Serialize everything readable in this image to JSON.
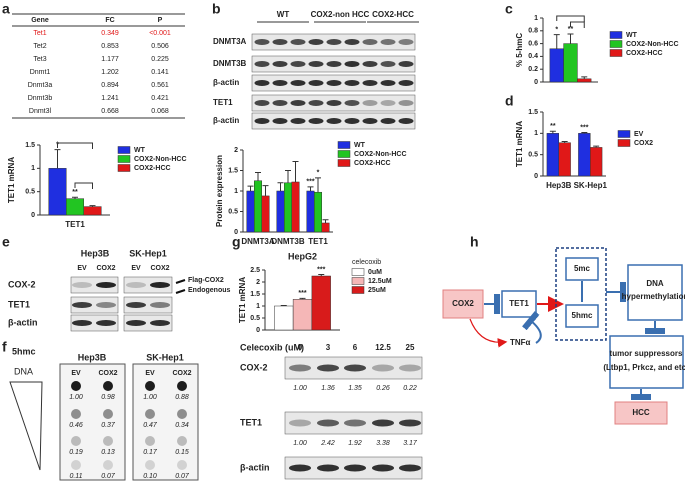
{
  "panel_labels": [
    "a",
    "b",
    "c",
    "d",
    "e",
    "f",
    "g",
    "h"
  ],
  "table_a": {
    "header": [
      "Gene",
      "FC",
      "P"
    ],
    "rows": [
      [
        "Tet1",
        "0.349",
        "<0.001"
      ],
      [
        "Tet2",
        "0.853",
        "0.506"
      ],
      [
        "Tet3",
        "1.177",
        "0.225"
      ],
      [
        "Dnmt1",
        "1.202",
        "0.141"
      ],
      [
        "Dnmt3a",
        "0.894",
        "0.561"
      ],
      [
        "Dnmt3b",
        "1.241",
        "0.421"
      ],
      [
        "Dnmt3l",
        "0.668",
        "0.068"
      ]
    ]
  },
  "chart_data": [
    {
      "type": "bar",
      "y_label": "TET1 mRNA",
      "categories": [
        "TET1"
      ],
      "ylim": [
        0,
        1.5
      ],
      "yticks": [
        0,
        0.5,
        1,
        1.5
      ],
      "series": [
        {
          "name": "WT",
          "color": "#1f2fe0",
          "values": [
            1.0
          ],
          "errors": [
            0.4
          ]
        },
        {
          "name": "COX2-Non-HCC",
          "color": "#22c522",
          "values": [
            0.35
          ],
          "errors": [
            0.03
          ]
        },
        {
          "name": "COX2-HCC",
          "color": "#e01818",
          "values": [
            0.18
          ],
          "errors": [
            0.02
          ]
        }
      ],
      "annotations": [
        "*",
        "**"
      ]
    },
    {
      "type": "bar",
      "y_label": "Protein expression",
      "categories": [
        "DNMT3A",
        "DNMT3B",
        "TET1"
      ],
      "ylim": [
        0,
        2
      ],
      "yticks": [
        0,
        0.5,
        1,
        1.5,
        2
      ],
      "series": [
        {
          "name": "WT",
          "color": "#1f2fe0",
          "values": [
            1.0,
            1.0,
            1.0
          ],
          "errors": [
            0.12,
            0.2,
            0.1
          ]
        },
        {
          "name": "COX2-Non-HCC",
          "color": "#22c522",
          "values": [
            1.25,
            1.2,
            0.97
          ],
          "errors": [
            0.2,
            0.3,
            0.35
          ]
        },
        {
          "name": "COX2-HCC",
          "color": "#e01818",
          "values": [
            0.88,
            1.22,
            0.22
          ],
          "errors": [
            0.25,
            0.5,
            0.08
          ]
        }
      ],
      "annotations": [
        "***",
        "*"
      ]
    },
    {
      "type": "bar",
      "y_label": "% 5-hmC",
      "categories": [
        null
      ],
      "ylim": [
        0,
        1
      ],
      "yticks": [
        0,
        0.2,
        0.4,
        0.6,
        0.8,
        1
      ],
      "series": [
        {
          "name": "WT",
          "color": "#1f2fe0",
          "values": [
            0.52
          ],
          "errors": [
            0.22
          ]
        },
        {
          "name": "COX2-Non-HCC",
          "color": "#22c522",
          "values": [
            0.6
          ],
          "errors": [
            0.15
          ]
        },
        {
          "name": "COX2-HCC",
          "color": "#e01818",
          "values": [
            0.05
          ],
          "errors": [
            0.03
          ]
        }
      ],
      "annotations": [
        "*",
        "**"
      ]
    },
    {
      "type": "bar",
      "y_label": "TET1 mRNA",
      "categories": [
        "Hep3B",
        "SK-Hep1"
      ],
      "ylim": [
        0,
        1.5
      ],
      "yticks": [
        0,
        0.5,
        1,
        1.5
      ],
      "series": [
        {
          "name": "EV",
          "color": "#1f2fe0",
          "values": [
            1.0,
            1.0
          ],
          "errors": [
            0.05,
            0.02
          ]
        },
        {
          "name": "COX2",
          "color": "#e01818",
          "values": [
            0.78,
            0.67
          ],
          "errors": [
            0.03,
            0.03
          ]
        }
      ],
      "annotations": [
        "**",
        "***"
      ]
    },
    {
      "type": "bar",
      "title": "HepG2",
      "y_label": "TET1 mRNA",
      "categories": [
        null
      ],
      "ylim": [
        0,
        2.5
      ],
      "yticks": [
        0,
        0.5,
        1,
        1.5,
        2,
        2.5
      ],
      "legend_title": "celecoxib",
      "series": [
        {
          "name": "0uM",
          "color": "#ffffff",
          "values": [
            1.0
          ],
          "errors": [
            0.02
          ]
        },
        {
          "name": "12.5uM",
          "color": "#f5b7b7",
          "values": [
            1.28
          ],
          "errors": [
            0.04
          ]
        },
        {
          "name": "25uM",
          "color": "#d81b1b",
          "values": [
            2.25
          ],
          "errors": [
            0.06
          ]
        }
      ],
      "annotations": [
        "***",
        "***"
      ]
    }
  ],
  "blot_b": {
    "groups": [
      "WT",
      "COX2-non HCC",
      "COX2-HCC"
    ],
    "rows": [
      "DNMT3A",
      "DNMT3B",
      "β-actin",
      "TET1",
      "β-actin"
    ]
  },
  "blot_e": {
    "cell_lines": [
      "Hep3B",
      "SK-Hep1"
    ],
    "lanes": [
      "EV",
      "COX2",
      "EV",
      "COX2"
    ],
    "rows": [
      "COX-2",
      "TET1",
      "β-actin"
    ],
    "arrows": [
      "Flag-COX2",
      "Endogenous"
    ]
  },
  "dot_blot_f": {
    "label": "5hmc",
    "dna_label": "DNA",
    "cell_lines": [
      "Hep3B",
      "SK-Hep1"
    ],
    "lanes": [
      "EV",
      "COX2",
      "EV",
      "COX2"
    ],
    "quantification": [
      [
        "1.00",
        "0.98",
        "1.00",
        "0.88"
      ],
      [
        "0.46",
        "0.37",
        "0.47",
        "0.34"
      ],
      [
        "0.19",
        "0.13",
        "0.17",
        "0.15"
      ],
      [
        "0.11",
        "0.07",
        "0.10",
        "0.07"
      ]
    ]
  },
  "blot_g": {
    "treatment_label": "Celecoxib (uM)",
    "doses": [
      "0",
      "3",
      "6",
      "12.5",
      "25"
    ],
    "rows": [
      {
        "name": "COX-2",
        "quantification": [
          "1.00",
          "1.36",
          "1.35",
          "0.26",
          "0.22"
        ]
      },
      {
        "name": "TET1",
        "quantification": [
          "1.00",
          "2.42",
          "1.92",
          "3.38",
          "3.17"
        ]
      },
      {
        "name": "β-actin"
      }
    ]
  },
  "diagram_h": {
    "cox2": "COX2",
    "tet1": "TET1",
    "tnfa": "TNFα",
    "mc": "5mc",
    "hmc": "5hmc",
    "dna": [
      "DNA",
      "hypermethylation"
    ],
    "suppressors": [
      "tumor suppressors",
      "(Ltbp1, Prkcz, and etc)"
    ],
    "hcc": "HCC"
  }
}
